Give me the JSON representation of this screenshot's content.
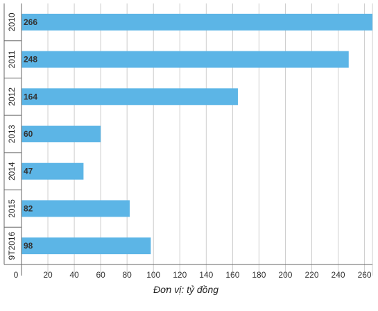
{
  "chart_data": {
    "type": "bar",
    "orientation": "horizontal",
    "categories": [
      "2010",
      "2011",
      "2012",
      "2013",
      "2014",
      "2015",
      "9T2016"
    ],
    "values": [
      266,
      248,
      164,
      60,
      47,
      82,
      98
    ],
    "xlabel": "Đơn vị: tỷ đồng",
    "xticks": [
      0,
      20,
      40,
      60,
      80,
      100,
      120,
      140,
      160,
      180,
      200,
      220,
      240,
      260
    ],
    "xlim": [
      0,
      266
    ],
    "grid": true,
    "colors": {
      "bar": "#5cb5e6",
      "grid": "#cccccc",
      "axis": "#666666"
    }
  }
}
